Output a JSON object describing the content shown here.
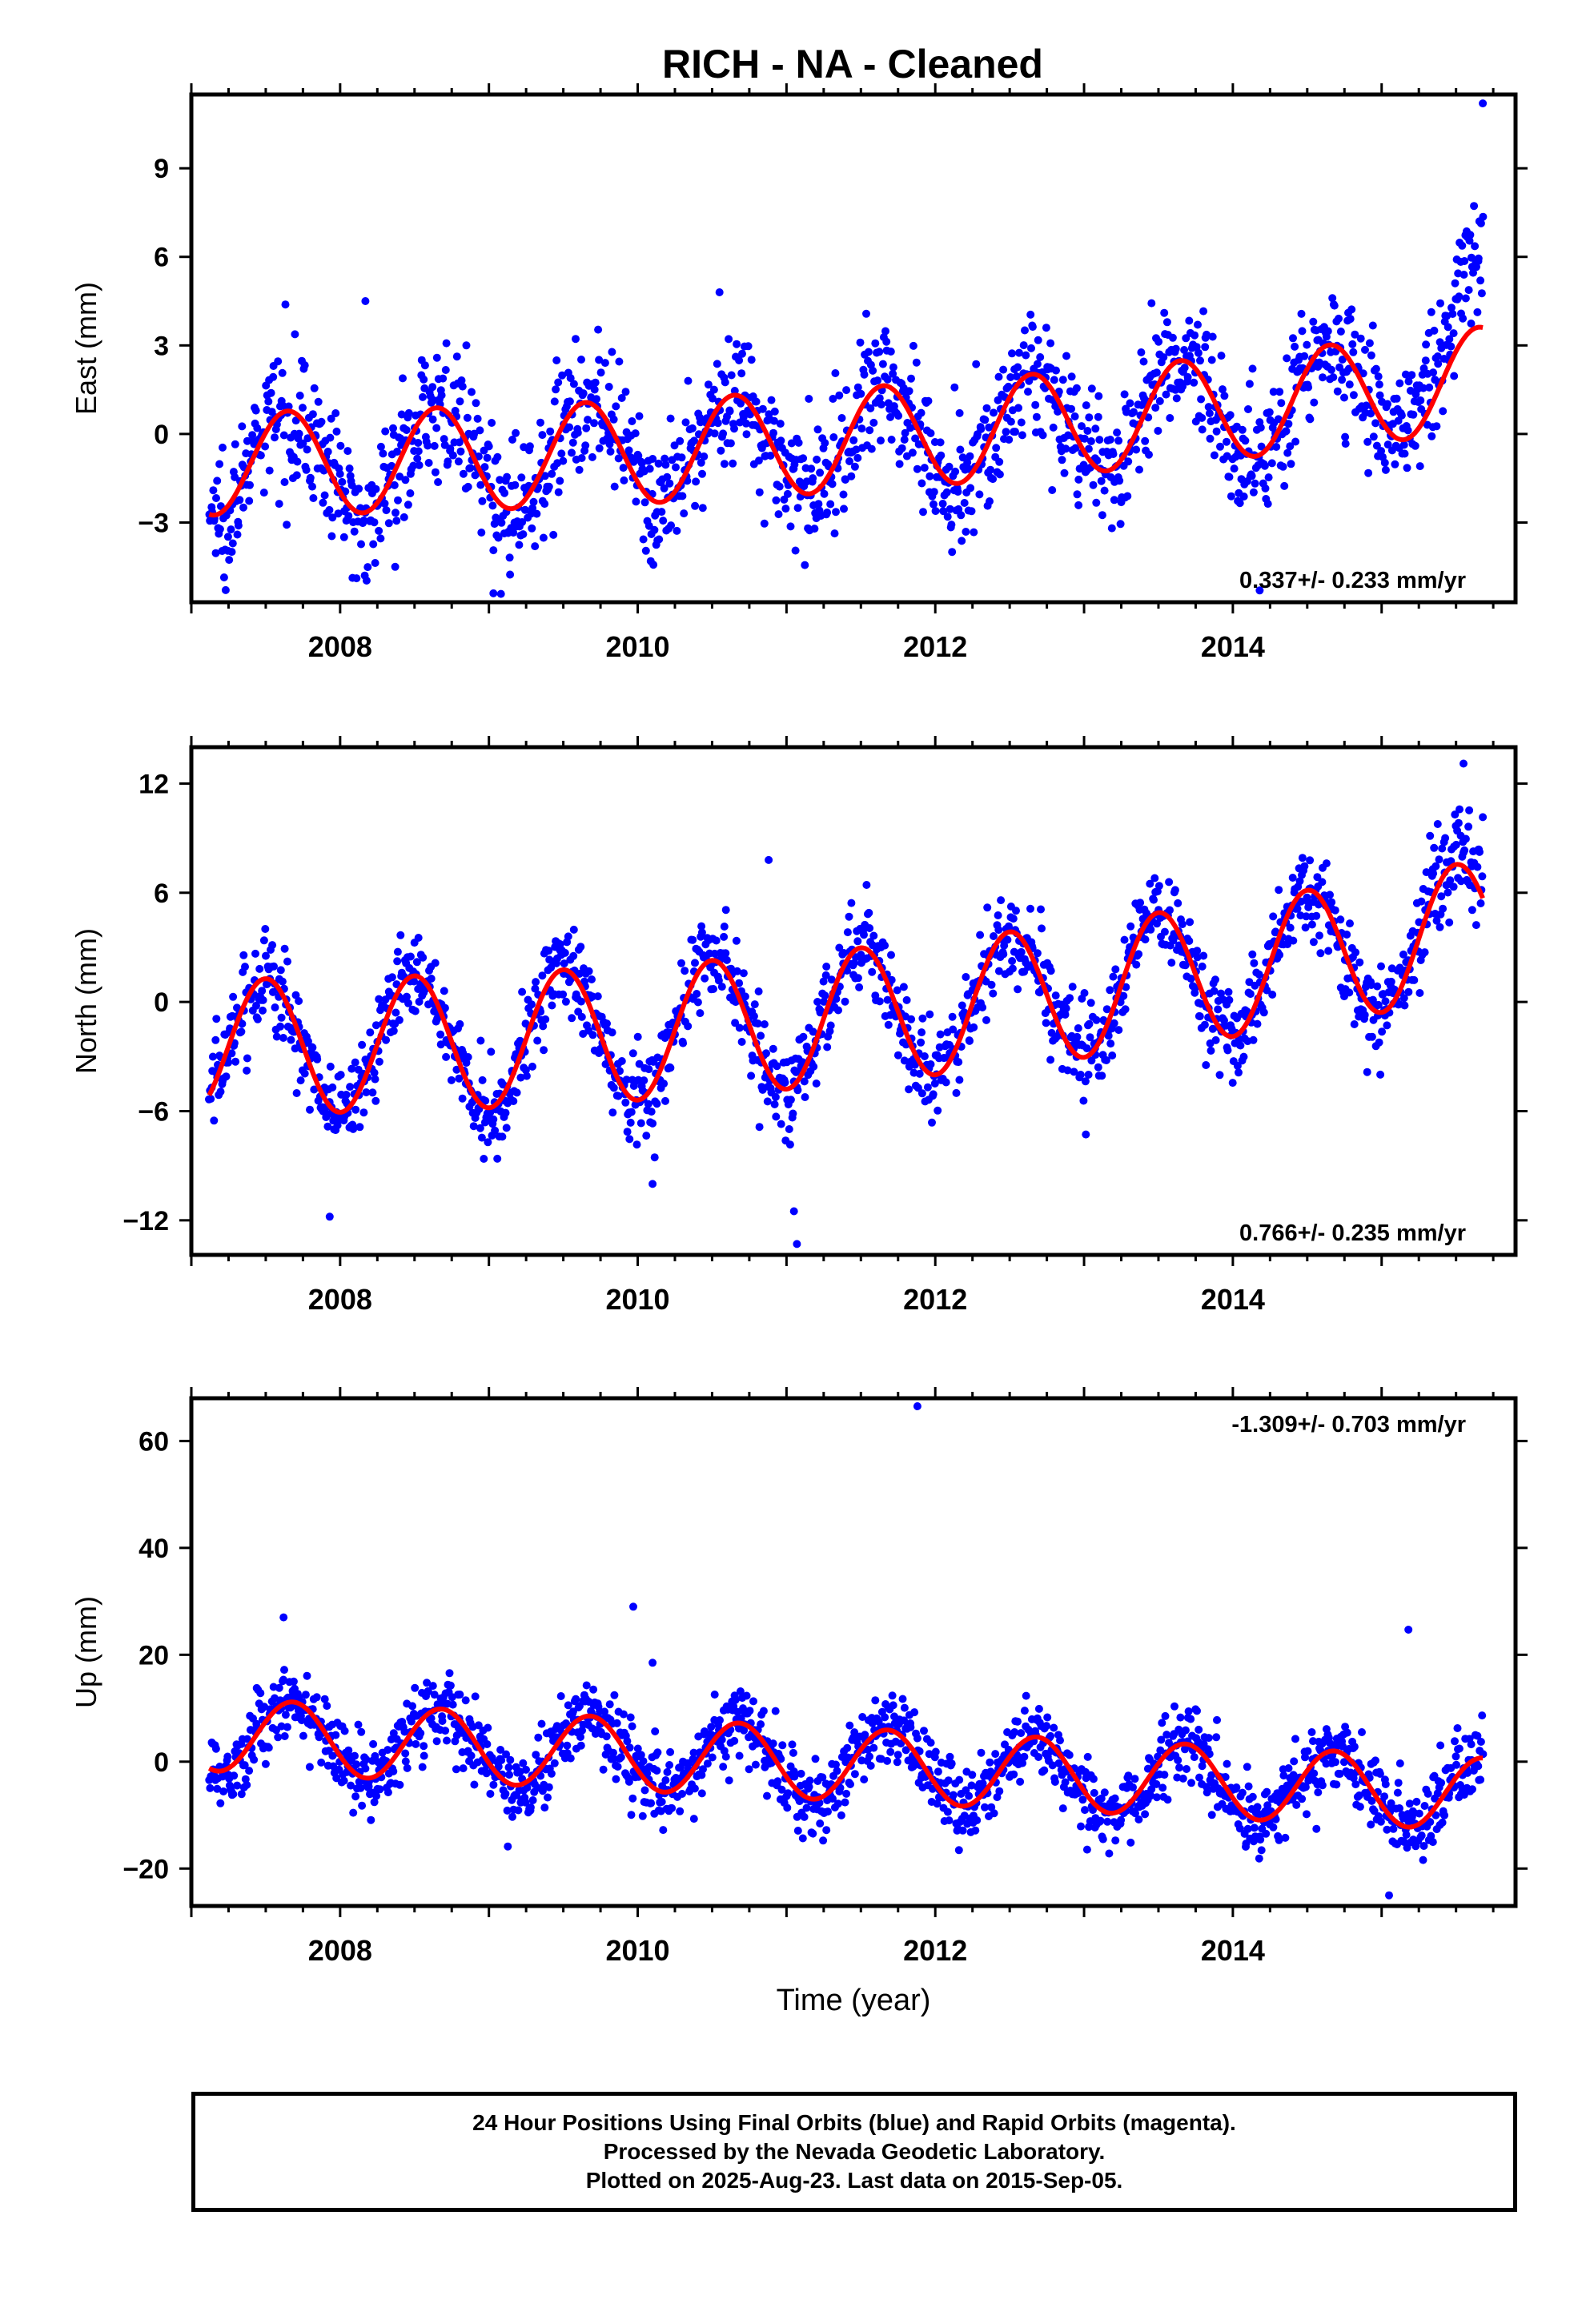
{
  "title": "RICH  - NA - Cleaned",
  "colors": {
    "data": "#0000ff",
    "fit": "#ff0000",
    "axis": "#000000"
  },
  "chart_data": [
    {
      "type": "scatter",
      "component": "east",
      "ylabel": "East (mm)",
      "xlabel": "",
      "xlim": [
        2007.0,
        2015.9
      ],
      "ylim": [
        -5.7,
        11.5
      ],
      "yticks": [
        9,
        6,
        3,
        0,
        -3
      ],
      "ytick_labels": [
        "9",
        "6",
        "3",
        "0",
        "−3"
      ],
      "xticks": [
        2008,
        2010,
        2012,
        2014
      ],
      "xtick_labels": [
        "2008",
        "2010",
        "2012",
        "2014"
      ],
      "velocity_label": "0.337+/- 0.233 mm/yr",
      "velocity_position": "bottom-right",
      "fit": {
        "offset": -0.2,
        "rate": 0.337,
        "amplitude": 1.75,
        "peak_phase": 0.65,
        "ref_year": 2011.4,
        "accel": 0.035
      },
      "series": [
        {
          "style": "points",
          "x_start": 2007.12,
          "x_end": 2015.68,
          "count": 1600,
          "noise_sd": 1.1,
          "extra_trend_after": 2015.0,
          "extra_trend_rate": 7.0
        }
      ],
      "outliers": [
        [
          2008.17,
          4.5
        ],
        [
          2009.03,
          -5.4
        ],
        [
          2014.18,
          -5.3
        ],
        [
          2015.68,
          11.2
        ],
        [
          2008.37,
          -4.5
        ],
        [
          2010.55,
          4.8
        ]
      ]
    },
    {
      "type": "scatter",
      "component": "north",
      "ylabel": "North (mm)",
      "xlabel": "",
      "xlim": [
        2007.0,
        2015.9
      ],
      "ylim": [
        -13.9,
        14.0
      ],
      "yticks": [
        12,
        6,
        0,
        -6,
        -12
      ],
      "ytick_labels": [
        "12",
        "6",
        "0",
        "−6",
        "−12"
      ],
      "xticks": [
        2008,
        2010,
        2012,
        2014
      ],
      "xtick_labels": [
        "2008",
        "2010",
        "2012",
        "2014"
      ],
      "velocity_label": "0.766+/- 0.235 mm/yr",
      "velocity_position": "bottom-right",
      "fit": {
        "offset": -0.8,
        "rate": 0.766,
        "amplitude": 3.7,
        "peak_phase": 0.5,
        "ref_year": 2011.4,
        "accel": 0.09
      },
      "series": [
        {
          "style": "points",
          "x_start": 2007.12,
          "x_end": 2015.68,
          "count": 1600,
          "noise_sd": 1.3,
          "extra_trend_after": 2015.2,
          "extra_trend_rate": 4.0
        }
      ],
      "outliers": [
        [
          2007.93,
          -11.8
        ],
        [
          2010.1,
          -10.0
        ],
        [
          2011.05,
          -11.5
        ],
        [
          2011.07,
          -13.3
        ],
        [
          2010.88,
          7.8
        ],
        [
          2015.55,
          13.1
        ]
      ]
    },
    {
      "type": "scatter",
      "component": "up",
      "ylabel": "Up (mm)",
      "xlabel": "Time (year)",
      "xlim": [
        2007.0,
        2015.9
      ],
      "ylim": [
        -27,
        68
      ],
      "yticks": [
        60,
        40,
        20,
        0,
        -20
      ],
      "ytick_labels": [
        "60",
        "40",
        "20",
        "0",
        "−20"
      ],
      "xticks": [
        2008,
        2010,
        2012,
        2014
      ],
      "xtick_labels": [
        "2008",
        "2010",
        "2012",
        "2014"
      ],
      "velocity_label": "-1.309+/- 0.703 mm/yr",
      "velocity_position": "top-right",
      "fit": {
        "offset": -0.5,
        "rate": -1.309,
        "amplitude": 6.8,
        "peak_phase": 0.68,
        "ref_year": 2011.4,
        "accel": 0.0
      },
      "series": [
        {
          "style": "points",
          "x_start": 2007.12,
          "x_end": 2015.68,
          "count": 1600,
          "noise_sd": 3.6,
          "extra_trend_after": 2099,
          "extra_trend_rate": 0
        }
      ],
      "outliers": [
        [
          2011.88,
          66.5
        ],
        [
          2009.97,
          29.0
        ],
        [
          2007.62,
          27.0
        ],
        [
          2015.18,
          24.7
        ],
        [
          2010.1,
          18.5
        ],
        [
          2015.05,
          -25.0
        ]
      ]
    }
  ],
  "footer": {
    "line1": "24 Hour Positions Using Final Orbits (blue) and Rapid Orbits (magenta).",
    "line2": "Processed by the Nevada Geodetic Laboratory.",
    "line3": "Plotted on 2025-Aug-23. Last data on 2015-Sep-05."
  }
}
